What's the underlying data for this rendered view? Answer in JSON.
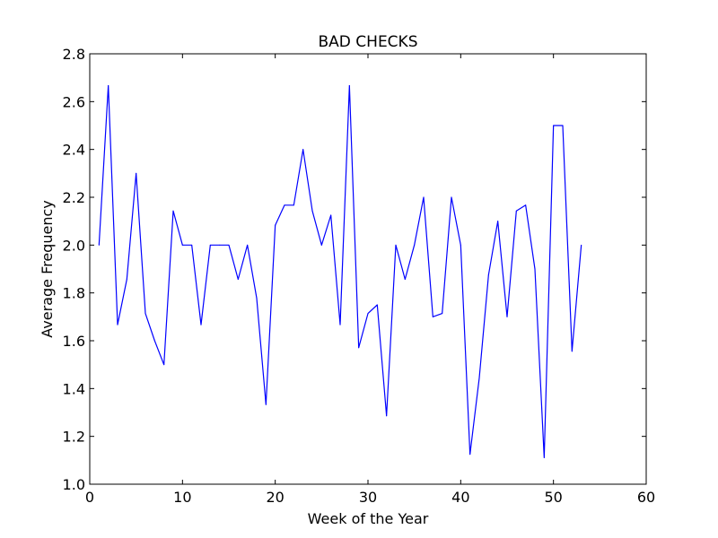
{
  "chart_data": {
    "type": "line",
    "title": "BAD CHECKS",
    "xlabel": "Week of the Year",
    "ylabel": "Average Frequency",
    "xlim": [
      0,
      60
    ],
    "ylim": [
      1.0,
      2.8
    ],
    "xticks": [
      0,
      10,
      20,
      30,
      40,
      50,
      60
    ],
    "yticks": [
      1.0,
      1.2,
      1.4,
      1.6,
      1.8,
      2.0,
      2.2,
      2.4,
      2.6,
      2.8
    ],
    "xtick_labels": [
      "0",
      "10",
      "20",
      "30",
      "40",
      "50",
      "60"
    ],
    "ytick_labels": [
      "1.0",
      "1.2",
      "1.4",
      "1.6",
      "1.8",
      "2.0",
      "2.2",
      "2.4",
      "2.6",
      "2.8"
    ],
    "grid": false,
    "line_color": "#0000ff",
    "series": [
      {
        "x": [
          1,
          2,
          3,
          4,
          5,
          6,
          7,
          8,
          9,
          10,
          11,
          12,
          13,
          14,
          15,
          16,
          17,
          18,
          19,
          20,
          21,
          22,
          23,
          24,
          25,
          26,
          27,
          28,
          29,
          30,
          31,
          32,
          33,
          34,
          35,
          36,
          37,
          38,
          39,
          40,
          41,
          42,
          43,
          44,
          45,
          46,
          47,
          48,
          49,
          50,
          51,
          52,
          53
        ],
        "values": [
          2.0,
          2.667,
          1.667,
          1.857,
          2.3,
          1.714,
          1.6,
          1.5,
          2.143,
          2.0,
          2.0,
          1.667,
          2.0,
          2.0,
          2.0,
          1.857,
          2.0,
          1.778,
          1.333,
          2.083,
          2.167,
          2.167,
          2.4,
          2.143,
          2.0,
          2.125,
          1.667,
          2.667,
          1.571,
          1.714,
          1.75,
          1.286,
          2.0,
          1.857,
          2.0,
          2.2,
          1.7,
          1.714,
          2.2,
          2.0,
          1.125,
          1.444,
          1.875,
          2.1,
          1.7,
          2.143,
          2.167,
          1.9,
          1.111,
          2.5,
          2.5,
          1.556,
          2.0
        ]
      }
    ]
  }
}
